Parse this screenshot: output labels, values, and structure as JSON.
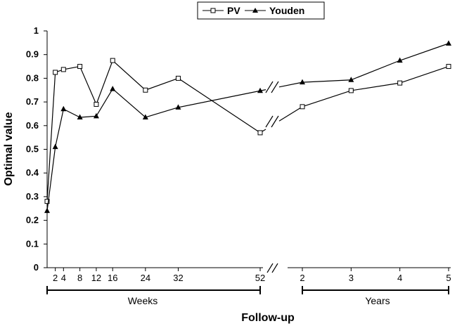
{
  "chart_data": {
    "type": "line",
    "ylabel": "Optimal value",
    "xlabel": "Follow-up",
    "ylim": [
      0,
      1
    ],
    "yticks": [
      "0",
      "0.1",
      "0.2",
      "0.3",
      "0.4",
      "0.5",
      "0.6",
      "0.7",
      "0.8",
      "0.9",
      "1"
    ],
    "grid": false,
    "legend_position": "top-center",
    "x_weeks": [
      0,
      2,
      4,
      8,
      12,
      16,
      24,
      32,
      52
    ],
    "x_week_ticks": [
      "2",
      "4",
      "8",
      "12",
      "16",
      "24",
      "32",
      "52"
    ],
    "x_years": [
      2,
      3,
      4,
      5
    ],
    "x_year_ticks": [
      "2",
      "3",
      "4",
      "5"
    ],
    "week_group_label": "Weeks",
    "year_group_label": "Years",
    "series": [
      {
        "name": "PV",
        "marker": "open-square",
        "weeks_values": [
          0.28,
          0.825,
          0.837,
          0.85,
          0.69,
          0.875,
          0.75,
          0.8,
          0.57
        ],
        "years_values": [
          0.68,
          0.748,
          0.78,
          0.85
        ]
      },
      {
        "name": "Youden",
        "marker": "filled-triangle",
        "weeks_values": [
          0.24,
          0.51,
          0.67,
          0.635,
          0.64,
          0.755,
          0.635,
          0.677,
          0.747
        ],
        "years_values": [
          0.783,
          0.793,
          0.875,
          0.947
        ]
      }
    ]
  }
}
